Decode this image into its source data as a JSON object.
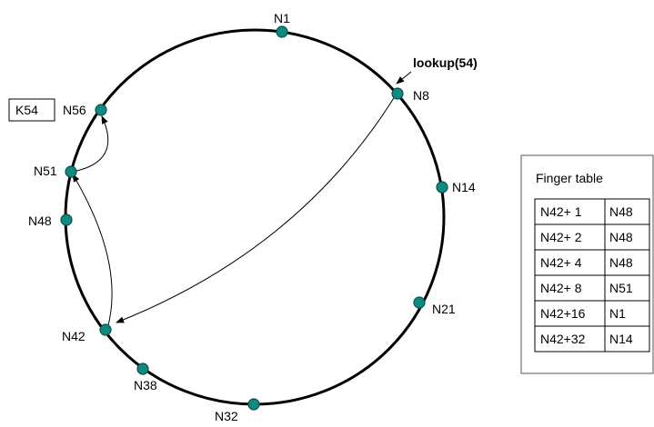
{
  "ring": {
    "nodes": [
      {
        "id": "N1",
        "label": "N1"
      },
      {
        "id": "N8",
        "label": "N8"
      },
      {
        "id": "N14",
        "label": "N14"
      },
      {
        "id": "N21",
        "label": "N21"
      },
      {
        "id": "N32",
        "label": "N32"
      },
      {
        "id": "N38",
        "label": "N38"
      },
      {
        "id": "N42",
        "label": "N42"
      },
      {
        "id": "N48",
        "label": "N48"
      },
      {
        "id": "N51",
        "label": "N51"
      },
      {
        "id": "N56",
        "label": "N56"
      }
    ],
    "key_label": "K54",
    "lookup_label": "lookup(54)"
  },
  "finger_table": {
    "title": "Finger table",
    "rows": [
      {
        "start": "N42+ 1",
        "node": "N48"
      },
      {
        "start": "N42+ 2",
        "node": "N48"
      },
      {
        "start": "N42+ 4",
        "node": "N48"
      },
      {
        "start": "N42+ 8",
        "node": "N51"
      },
      {
        "start": "N42+16",
        "node": "N1"
      },
      {
        "start": "N42+32",
        "node": "N14"
      }
    ]
  },
  "colors": {
    "node_fill": "#0f8a80",
    "node_stroke": "#0b4f4a",
    "ring": "#000000"
  }
}
